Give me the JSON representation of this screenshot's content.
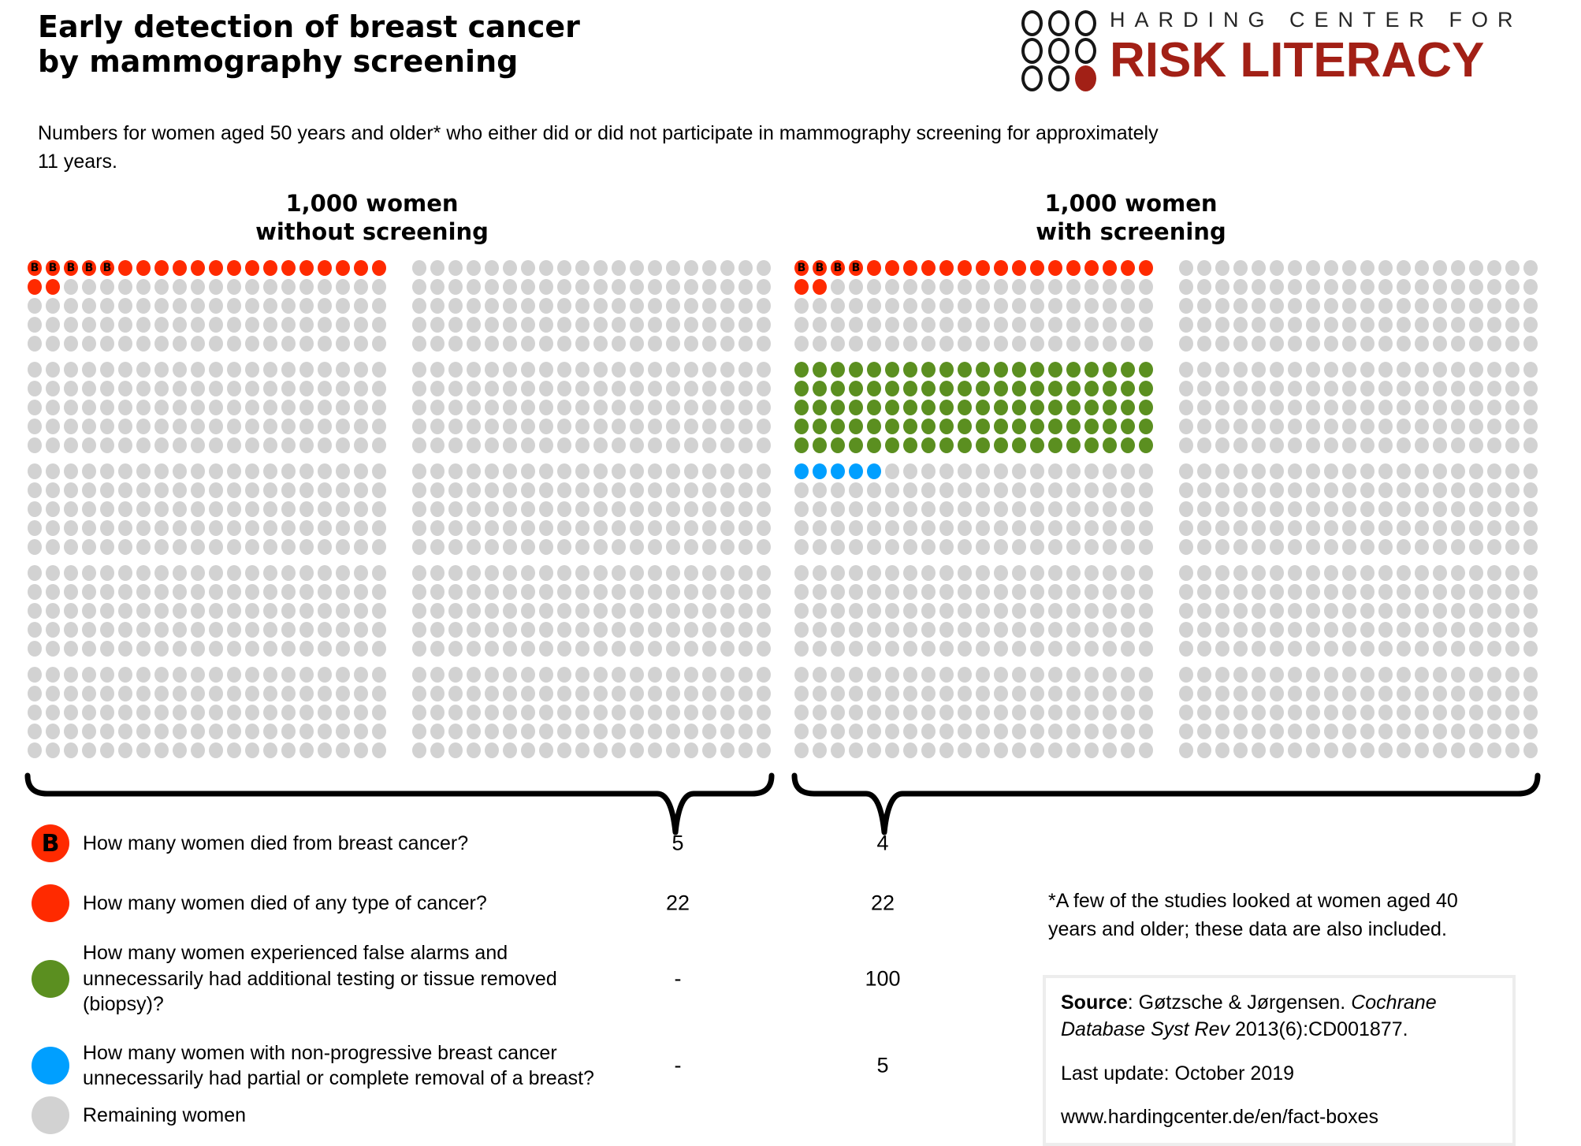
{
  "header": {
    "title_line1": "Early detection of breast cancer",
    "title_line2": "by mammography screening",
    "subtitle_lines": [
      "Numbers for women aged 50 years and older* who either did or did not participate in mammography screening for approximately",
      "11 years."
    ]
  },
  "logo": {
    "top_text": "HARDING CENTER FOR",
    "bottom_text": "RISK LITERACY"
  },
  "colors": {
    "red": "#ff2a00",
    "green": "#5b8f20",
    "blue": "#009fff",
    "gray": "#d2d2d2",
    "logo_red": "#a22016"
  },
  "chart_data": {
    "type": "table",
    "subtype": "icon-array (1 dot = 1 woman, 1,000 dots per group)",
    "title": "Early detection of breast cancer by mammography screening",
    "population_per_group": 1000,
    "b_marker_label": "B",
    "groups": [
      {
        "label_line1": "1,000 women",
        "label_line2": "without screening",
        "grid": {
          "rows": 25,
          "cols": 40,
          "block_split_after_col": 20,
          "band_rows": 5
        },
        "counts": {
          "died_from_breast_cancer": 5,
          "died_any_cancer": 22,
          "false_alarms": 0,
          "unnecessary_breast_removal": 0,
          "remaining": 978
        },
        "row_pattern": [
          {
            "row": 0,
            "segments": [
              {
                "type": "b",
                "n": 5
              },
              {
                "type": "red",
                "n": 15
              }
            ]
          },
          {
            "row": 1,
            "segments": [
              {
                "type": "red",
                "n": 2
              }
            ]
          }
        ]
      },
      {
        "label_line1": "1,000 women",
        "label_line2": "with screening",
        "grid": {
          "rows": 25,
          "cols": 40,
          "block_split_after_col": 20,
          "band_rows": 5
        },
        "counts": {
          "died_from_breast_cancer": 4,
          "died_any_cancer": 22,
          "false_alarms": 100,
          "unnecessary_breast_removal": 5,
          "remaining": 873
        },
        "row_pattern": [
          {
            "row": 0,
            "segments": [
              {
                "type": "b",
                "n": 4
              },
              {
                "type": "red",
                "n": 16
              }
            ]
          },
          {
            "row": 1,
            "segments": [
              {
                "type": "red",
                "n": 2
              }
            ]
          },
          {
            "row": 5,
            "segments": [
              {
                "type": "green",
                "n": 20
              }
            ]
          },
          {
            "row": 6,
            "segments": [
              {
                "type": "green",
                "n": 20
              }
            ]
          },
          {
            "row": 7,
            "segments": [
              {
                "type": "green",
                "n": 20
              }
            ]
          },
          {
            "row": 8,
            "segments": [
              {
                "type": "green",
                "n": 20
              }
            ]
          },
          {
            "row": 9,
            "segments": [
              {
                "type": "green",
                "n": 20
              }
            ]
          },
          {
            "row": 10,
            "segments": [
              {
                "type": "blue",
                "n": 5
              }
            ]
          }
        ]
      }
    ],
    "legend": [
      {
        "marker": "B",
        "question_lines": [
          "How many women died from breast cancer?"
        ],
        "without_screening": "5",
        "with_screening": "4"
      },
      {
        "marker": "red",
        "question_lines": [
          "How many women died of any type of cancer?"
        ],
        "without_screening": "22",
        "with_screening": "22"
      },
      {
        "marker": "green",
        "question_lines": [
          "How many women experienced false alarms and",
          "unnecessarily had additional testing or tissue removed",
          "(biopsy)?"
        ],
        "without_screening": "-",
        "with_screening": "100"
      },
      {
        "marker": "blue",
        "question_lines": [
          "How many women with non-progressive breast cancer",
          "unnecessarily had partial or complete removal of a breast?"
        ],
        "without_screening": "-",
        "with_screening": "5"
      },
      {
        "marker": "gray",
        "question_lines": [
          "Remaining women"
        ],
        "without_screening": "",
        "with_screening": ""
      }
    ]
  },
  "footnote_lines": [
    "*A few of the studies looked at women aged 40",
    "years and older; these data are also included."
  ],
  "source_box": {
    "label": "Source",
    "text_after_label": ": Gøtzsche & Jørgensen. ",
    "italic_text": "Cochrane Database Syst Rev",
    "text_tail": " 2013(6):CD001877.",
    "last_update": "Last update: October 2019",
    "url": "www.hardingcenter.de/en/fact-boxes"
  }
}
